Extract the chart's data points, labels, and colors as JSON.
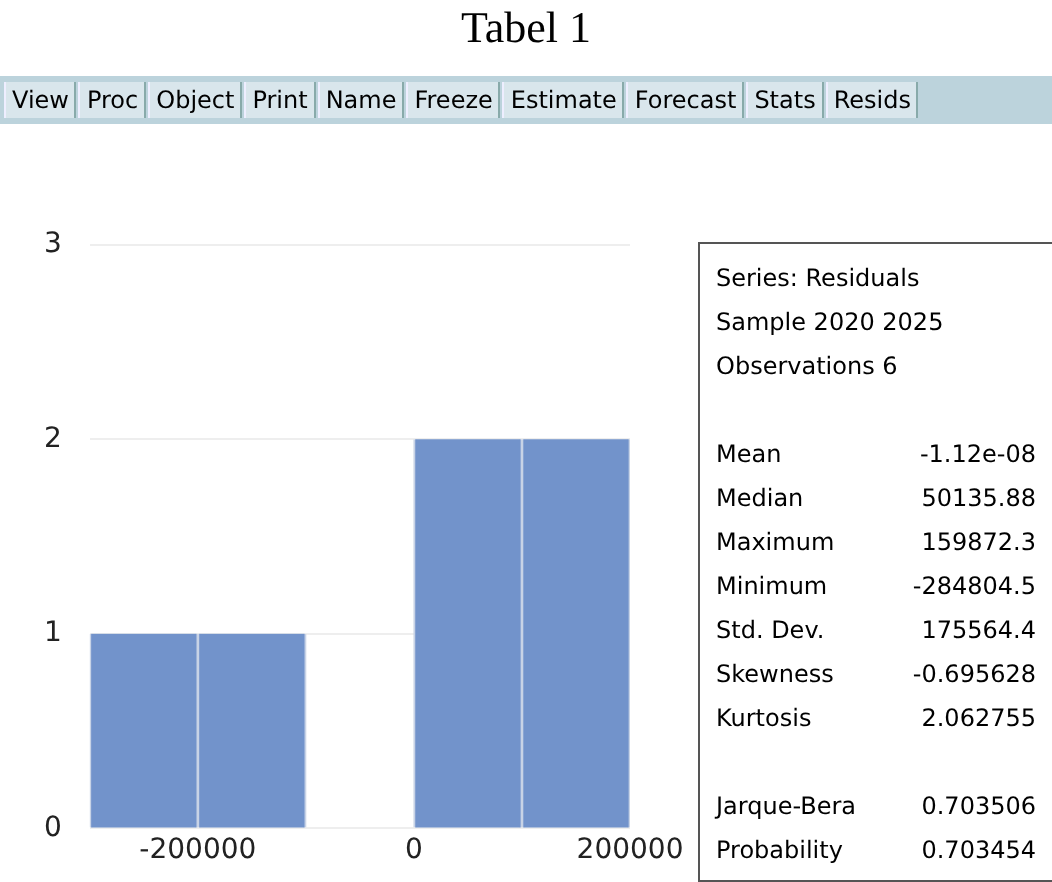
{
  "chart_data": {
    "type": "histogram",
    "title": "Tabel 1",
    "bins": [
      -300000,
      -200000,
      -100000,
      0,
      100000,
      200000
    ],
    "values": [
      1,
      1,
      0,
      2,
      2
    ],
    "color": "#7293cb",
    "xlim": [
      -300000,
      200000
    ],
    "xticks": [
      -200000,
      0,
      200000
    ],
    "ylim": [
      0,
      3
    ],
    "yticks": [
      0,
      1,
      2,
      3
    ],
    "grid": "y",
    "annotations": [
      "View",
      "Proc",
      "Object",
      "Print",
      "Name",
      "Freeze",
      "Estimate",
      "Forecast",
      "Stats",
      "Resids",
      "Series: Residuals",
      "Sample 2020 2025",
      "Observations 6",
      "Mean",
      "-1.12e-08",
      "Median",
      "50135.88",
      "Maximum",
      "159872.3",
      "Minimum",
      "-284804.5",
      "Std. Dev.",
      "175564.4",
      "Skewness",
      "-0.695628",
      "Kurtosis",
      "2.062755",
      "Jarque-Bera",
      "0.703506",
      "Probability",
      "0.703454"
    ]
  }
}
